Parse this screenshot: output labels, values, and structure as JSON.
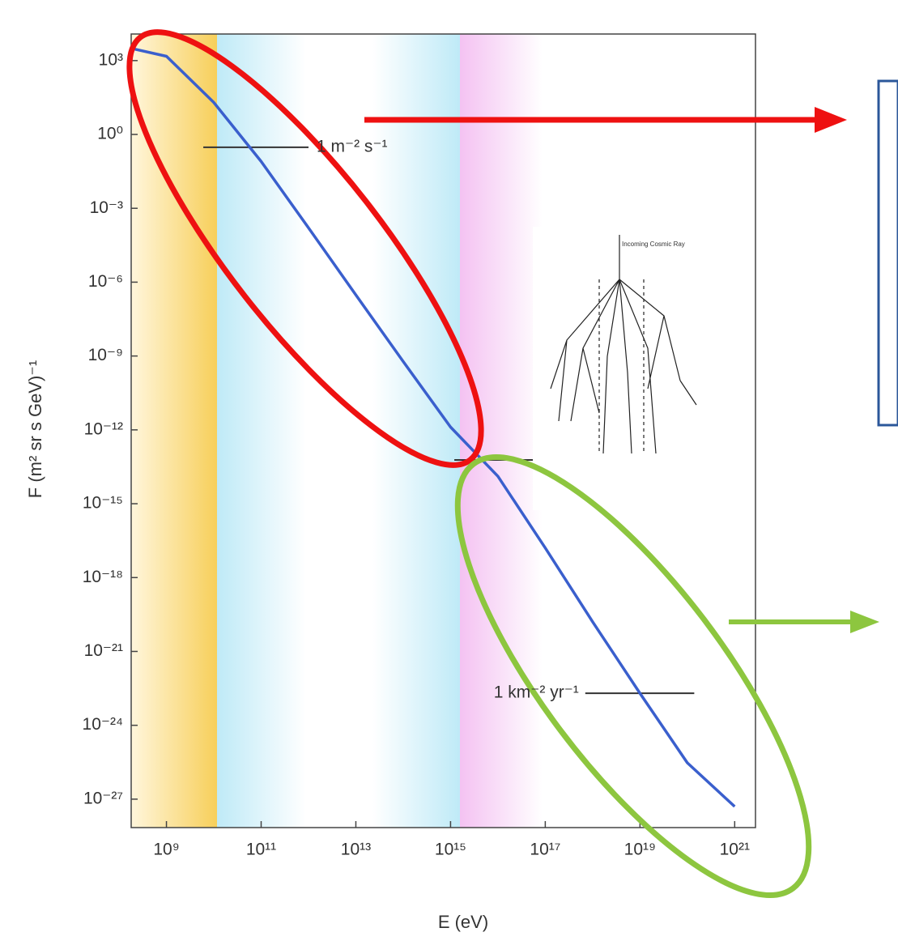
{
  "chart_data": {
    "type": "line",
    "log_x": true,
    "log_y": true,
    "x_label": "E (eV)",
    "y_label": "F (m² sr s GeV)⁻¹",
    "x": [
      200000000.0,
      1000000000.0,
      10000000000.0,
      100000000000.0,
      1000000000000.0,
      10000000000000.0,
      100000000000000.0,
      1000000000000000.0,
      1e+16,
      1e+17,
      1e+18,
      1e+19,
      1e+20,
      1e+21
    ],
    "series": [
      {
        "color": "#3a5fcd",
        "values": [
          3000.0,
          1500.0,
          20.0,
          0.08,
          0.00016,
          3e-07,
          6e-10,
          1.3e-12,
          1.3e-14,
          1.6e-17,
          1.6e-20,
          2e-23,
          3e-26,
          5e-28
        ]
      }
    ],
    "xlim": [
      180000000.0,
      2.75e+21
    ],
    "ylim": [
      7e-29,
      12000.0
    ],
    "xticks": [
      {
        "value": 1000000000.0,
        "label": "10⁹"
      },
      {
        "value": 100000000000.0,
        "label": "10¹¹"
      },
      {
        "value": 10000000000000.0,
        "label": "10¹³"
      },
      {
        "value": 1000000000000000.0,
        "label": "10¹⁵"
      },
      {
        "value": 1e+17,
        "label": "10¹⁷"
      },
      {
        "value": 1e+19,
        "label": "10¹⁹"
      },
      {
        "value": 1e+21,
        "label": "10²¹"
      }
    ],
    "yticks": [
      {
        "value": 1000.0,
        "label": "10³"
      },
      {
        "value": 1,
        "label": "10⁰"
      },
      {
        "value": 0.001,
        "label": "10⁻³"
      },
      {
        "value": 1e-06,
        "label": "10⁻⁶"
      },
      {
        "value": 1e-09,
        "label": "10⁻⁹"
      },
      {
        "value": 1e-12,
        "label": "10⁻¹²"
      },
      {
        "value": 1e-15,
        "label": "10⁻¹⁵"
      },
      {
        "value": 1e-18,
        "label": "10⁻¹⁸"
      },
      {
        "value": 1e-21,
        "label": "10⁻²¹"
      },
      {
        "value": 1e-24,
        "label": "10⁻²⁴"
      },
      {
        "value": 1e-27,
        "label": "10⁻²⁷"
      }
    ],
    "annotations": [
      {
        "text": "1 m⁻² s⁻¹",
        "y": 0.3,
        "x": [
          6000000000.0,
          1000000000000.0
        ],
        "text_side": "right"
      },
      {
        "y": 6e-14,
        "x": [
          1200000000000000.0,
          6e+16
        ]
      },
      {
        "text": "1 km⁻² yr⁻¹",
        "y": 2e-23,
        "x": [
          7e+17,
          1.4e+20
        ],
        "text_side": "left"
      }
    ],
    "inset_title": "Incoming Cosmic Ray"
  }
}
